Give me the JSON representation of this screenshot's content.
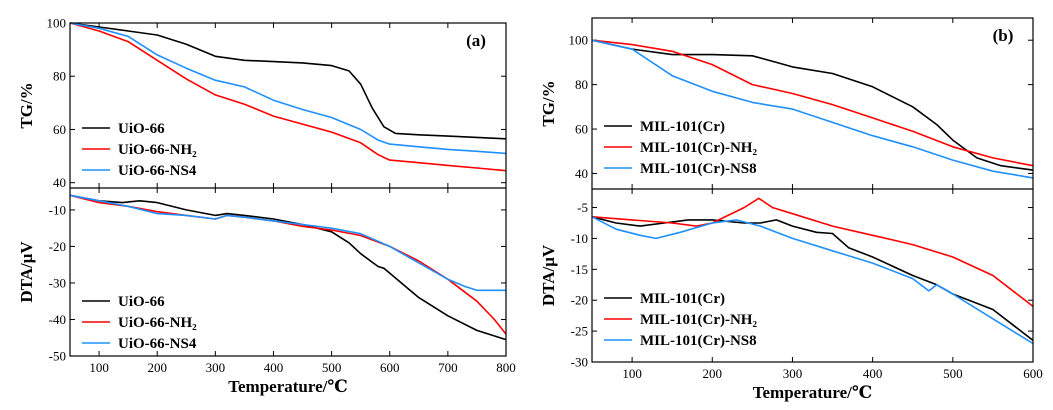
{
  "chart_data": [
    {
      "type": "line",
      "panel": "(a)",
      "xlabel": "Temperature/℃",
      "xlim": [
        50,
        800
      ],
      "xticks": [
        100,
        200,
        300,
        400,
        500,
        600,
        700,
        800
      ],
      "subplots": [
        {
          "ylabel": "TG/%",
          "ylim": [
            38,
            100
          ],
          "yticks": [
            40,
            60,
            80,
            100
          ],
          "legend_position": "bottom-left",
          "series": [
            {
              "name": "UiO-66",
              "color": "#000000",
              "points": [
                [
                  50,
                  100
                ],
                [
                  100,
                  98.5
                ],
                [
                  150,
                  97
                ],
                [
                  200,
                  95.5
                ],
                [
                  250,
                  92
                ],
                [
                  300,
                  87.5
                ],
                [
                  350,
                  86
                ],
                [
                  400,
                  85.5
                ],
                [
                  450,
                  85
                ],
                [
                  500,
                  84
                ],
                [
                  530,
                  82
                ],
                [
                  550,
                  77
                ],
                [
                  570,
                  68
                ],
                [
                  590,
                  61
                ],
                [
                  610,
                  58.5
                ],
                [
                  650,
                  58
                ],
                [
                  700,
                  57.5
                ],
                [
                  750,
                  57
                ],
                [
                  800,
                  56.5
                ]
              ]
            },
            {
              "name": "UiO-66-NH₂",
              "color": "#ff0000",
              "points": [
                [
                  50,
                  100
                ],
                [
                  100,
                  97
                ],
                [
                  150,
                  93
                ],
                [
                  200,
                  86
                ],
                [
                  250,
                  79
                ],
                [
                  300,
                  73
                ],
                [
                  350,
                  69.5
                ],
                [
                  400,
                  65
                ],
                [
                  450,
                  62
                ],
                [
                  500,
                  59
                ],
                [
                  550,
                  55
                ],
                [
                  580,
                  50.5
                ],
                [
                  600,
                  48.5
                ],
                [
                  650,
                  47.5
                ],
                [
                  700,
                  46.5
                ],
                [
                  750,
                  45.5
                ],
                [
                  800,
                  44.5
                ]
              ]
            },
            {
              "name": "UiO-66-NS4",
              "color": "#1e90ff",
              "points": [
                [
                  50,
                  100
                ],
                [
                  100,
                  98
                ],
                [
                  150,
                  95
                ],
                [
                  200,
                  88
                ],
                [
                  250,
                  83
                ],
                [
                  300,
                  78.5
                ],
                [
                  350,
                  76
                ],
                [
                  400,
                  71
                ],
                [
                  450,
                  67.5
                ],
                [
                  500,
                  64.5
                ],
                [
                  550,
                  60
                ],
                [
                  580,
                  56
                ],
                [
                  600,
                  54.5
                ],
                [
                  650,
                  53.5
                ],
                [
                  700,
                  52.5
                ],
                [
                  750,
                  51.8
                ],
                [
                  800,
                  51
                ]
              ]
            }
          ]
        },
        {
          "ylabel": "DTA/μV",
          "ylim": [
            -50,
            -4
          ],
          "yticks": [
            -50,
            -40,
            -30,
            -20,
            -10
          ],
          "legend_position": "bottom-left",
          "series": [
            {
              "name": "UiO-66",
              "color": "#000000",
              "points": [
                [
                  50,
                  -6
                ],
                [
                  100,
                  -7.5
                ],
                [
                  140,
                  -8
                ],
                [
                  170,
                  -7.5
                ],
                [
                  200,
                  -8
                ],
                [
                  250,
                  -10
                ],
                [
                  300,
                  -11.5
                ],
                [
                  320,
                  -11
                ],
                [
                  350,
                  -11.5
                ],
                [
                  400,
                  -12.5
                ],
                [
                  450,
                  -14
                ],
                [
                  500,
                  -16
                ],
                [
                  530,
                  -19
                ],
                [
                  550,
                  -22
                ],
                [
                  580,
                  -25.5
                ],
                [
                  590,
                  -26
                ],
                [
                  620,
                  -30
                ],
                [
                  650,
                  -34
                ],
                [
                  700,
                  -39
                ],
                [
                  750,
                  -43
                ],
                [
                  800,
                  -45.5
                ]
              ]
            },
            {
              "name": "UiO-66-NH₂",
              "color": "#ff0000",
              "points": [
                [
                  50,
                  -6
                ],
                [
                  100,
                  -8
                ],
                [
                  150,
                  -9
                ],
                [
                  200,
                  -10.5
                ],
                [
                  250,
                  -11.5
                ],
                [
                  300,
                  -12.5
                ],
                [
                  320,
                  -11.5
                ],
                [
                  350,
                  -12
                ],
                [
                  400,
                  -13
                ],
                [
                  450,
                  -14.5
                ],
                [
                  500,
                  -15.5
                ],
                [
                  550,
                  -17
                ],
                [
                  600,
                  -20
                ],
                [
                  650,
                  -24
                ],
                [
                  700,
                  -29
                ],
                [
                  750,
                  -35
                ],
                [
                  780,
                  -40
                ],
                [
                  800,
                  -44
                ]
              ]
            },
            {
              "name": "UiO-66-NS4",
              "color": "#1e90ff",
              "points": [
                [
                  50,
                  -6
                ],
                [
                  100,
                  -7.5
                ],
                [
                  150,
                  -9
                ],
                [
                  200,
                  -11
                ],
                [
                  250,
                  -11.5
                ],
                [
                  300,
                  -12.5
                ],
                [
                  320,
                  -11.5
                ],
                [
                  350,
                  -12
                ],
                [
                  400,
                  -13
                ],
                [
                  450,
                  -14
                ],
                [
                  500,
                  -15
                ],
                [
                  550,
                  -16.5
                ],
                [
                  600,
                  -20
                ],
                [
                  650,
                  -24.5
                ],
                [
                  700,
                  -29
                ],
                [
                  730,
                  -31
                ],
                [
                  750,
                  -32
                ],
                [
                  800,
                  -32
                ]
              ]
            }
          ]
        }
      ]
    },
    {
      "type": "line",
      "panel": "(b)",
      "xlabel": "Temperature/℃",
      "xlim": [
        50,
        600
      ],
      "xticks": [
        100,
        200,
        300,
        400,
        500,
        600
      ],
      "subplots": [
        {
          "ylabel": "TG/%",
          "ylim": [
            33,
            110
          ],
          "yticks": [
            40,
            60,
            80,
            100
          ],
          "legend_position": "bottom-left",
          "series": [
            {
              "name": "MIL-101(Cr)",
              "color": "#000000",
              "points": [
                [
                  50,
                  100
                ],
                [
                  100,
                  96
                ],
                [
                  150,
                  93.5
                ],
                [
                  200,
                  93.5
                ],
                [
                  250,
                  93
                ],
                [
                  280,
                  90
                ],
                [
                  300,
                  88
                ],
                [
                  350,
                  85
                ],
                [
                  400,
                  79
                ],
                [
                  450,
                  70
                ],
                [
                  480,
                  62
                ],
                [
                  500,
                  55
                ],
                [
                  530,
                  47
                ],
                [
                  560,
                  43.5
                ],
                [
                  600,
                  41.5
                ]
              ]
            },
            {
              "name": "MIL-101(Cr)-NH₂",
              "color": "#ff0000",
              "points": [
                [
                  50,
                  100
                ],
                [
                  100,
                  98
                ],
                [
                  150,
                  95
                ],
                [
                  200,
                  89
                ],
                [
                  250,
                  80
                ],
                [
                  300,
                  76
                ],
                [
                  350,
                  71
                ],
                [
                  400,
                  65
                ],
                [
                  450,
                  59
                ],
                [
                  500,
                  52
                ],
                [
                  550,
                  47
                ],
                [
                  600,
                  43.5
                ]
              ]
            },
            {
              "name": "MIL-101(Cr)-NS8",
              "color": "#1e90ff",
              "points": [
                [
                  50,
                  100
                ],
                [
                  100,
                  96
                ],
                [
                  150,
                  84
                ],
                [
                  200,
                  77
                ],
                [
                  250,
                  72
                ],
                [
                  300,
                  69
                ],
                [
                  350,
                  63
                ],
                [
                  400,
                  57
                ],
                [
                  450,
                  52
                ],
                [
                  500,
                  46
                ],
                [
                  550,
                  41
                ],
                [
                  600,
                  38
                ]
              ]
            }
          ]
        },
        {
          "ylabel": "DTA/μV",
          "ylim": [
            -30,
            -2
          ],
          "yticks": [
            -30,
            -25,
            -20,
            -15,
            -10,
            -5
          ],
          "legend_position": "bottom-left",
          "series": [
            {
              "name": "MIL-101(Cr)",
              "color": "#000000",
              "points": [
                [
                  50,
                  -6.5
                ],
                [
                  80,
                  -7.5
                ],
                [
                  110,
                  -8
                ],
                [
                  140,
                  -7.5
                ],
                [
                  170,
                  -7
                ],
                [
                  200,
                  -7
                ],
                [
                  240,
                  -7.5
                ],
                [
                  260,
                  -7.5
                ],
                [
                  280,
                  -7
                ],
                [
                  300,
                  -8
                ],
                [
                  330,
                  -9
                ],
                [
                  350,
                  -9.2
                ],
                [
                  370,
                  -11.5
                ],
                [
                  400,
                  -13
                ],
                [
                  450,
                  -16
                ],
                [
                  480,
                  -17.5
                ],
                [
                  500,
                  -19
                ],
                [
                  550,
                  -21.5
                ],
                [
                  600,
                  -26.5
                ]
              ]
            },
            {
              "name": "MIL-101(Cr)-NH₂",
              "color": "#ff0000",
              "points": [
                [
                  50,
                  -6.5
                ],
                [
                  100,
                  -7
                ],
                [
                  150,
                  -7.5
                ],
                [
                  180,
                  -8
                ],
                [
                  200,
                  -7.5
                ],
                [
                  240,
                  -5
                ],
                [
                  258,
                  -3.5
                ],
                [
                  275,
                  -5
                ],
                [
                  300,
                  -6
                ],
                [
                  350,
                  -8
                ],
                [
                  400,
                  -9.5
                ],
                [
                  450,
                  -11
                ],
                [
                  500,
                  -13
                ],
                [
                  550,
                  -16
                ],
                [
                  600,
                  -21
                ]
              ]
            },
            {
              "name": "MIL-101(Cr)-NS8",
              "color": "#1e90ff",
              "points": [
                [
                  50,
                  -6.5
                ],
                [
                  80,
                  -8.5
                ],
                [
                  110,
                  -9.5
                ],
                [
                  130,
                  -10
                ],
                [
                  160,
                  -9
                ],
                [
                  200,
                  -7.5
                ],
                [
                  230,
                  -7
                ],
                [
                  260,
                  -8
                ],
                [
                  300,
                  -10
                ],
                [
                  350,
                  -12
                ],
                [
                  400,
                  -14
                ],
                [
                  450,
                  -16.5
                ],
                [
                  470,
                  -18.5
                ],
                [
                  480,
                  -17.5
                ],
                [
                  500,
                  -19
                ],
                [
                  550,
                  -23
                ],
                [
                  600,
                  -27
                ]
              ]
            }
          ]
        }
      ]
    }
  ]
}
